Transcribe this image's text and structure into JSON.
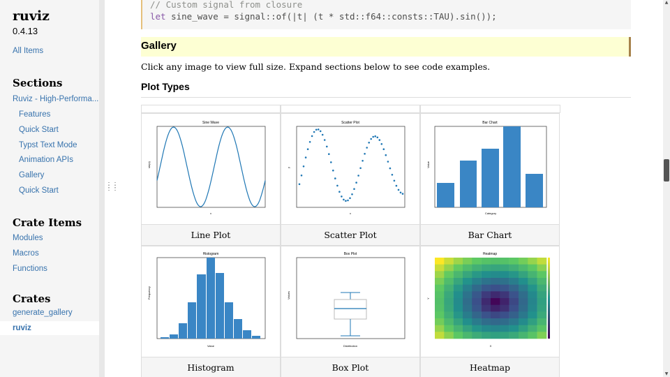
{
  "sidebar": {
    "crate_name": "ruviz",
    "version": "0.4.13",
    "all_items": "All Items",
    "sections_heading": "Sections",
    "sections": [
      {
        "label": "Ruviz - High-Performa..."
      },
      {
        "label": "Features"
      },
      {
        "label": "Quick Start"
      },
      {
        "label": "Typst Text Mode"
      },
      {
        "label": "Animation APIs"
      },
      {
        "label": "Gallery"
      },
      {
        "label": "Quick Start"
      }
    ],
    "crate_items_heading": "Crate Items",
    "crate_items": [
      {
        "label": "Modules"
      },
      {
        "label": "Macros"
      },
      {
        "label": "Functions"
      }
    ],
    "crates_heading": "Crates",
    "crates": [
      {
        "label": "generate_gallery"
      },
      {
        "label": "ruviz"
      }
    ]
  },
  "code": {
    "comment": "// Custom signal from closure",
    "keyword": "let",
    "rest": " sine_wave = signal::of(|t| (t * std::f64::consts::TAU).sin());"
  },
  "content": {
    "gallery_heading": "Gallery",
    "intro": "Click any image to view full size. Expand sections below to see code examples.",
    "plot_types_heading": "Plot Types",
    "cards": [
      {
        "caption": "Line Plot",
        "title": "Sine Wave"
      },
      {
        "caption": "Scatter Plot",
        "title": "Scatter Plot"
      },
      {
        "caption": "Bar Chart",
        "title": "Bar Chart"
      },
      {
        "caption": "Histogram",
        "title": "Histogram"
      },
      {
        "caption": "Box Plot",
        "title": "Box Plot"
      },
      {
        "caption": "Heatmap",
        "title": "Heatmap"
      }
    ]
  },
  "colors": {
    "link": "#3873ad",
    "plot_blue": "#1f77b4",
    "bar_blue": "#3a86c5",
    "highlight": "#fdffd3"
  }
}
